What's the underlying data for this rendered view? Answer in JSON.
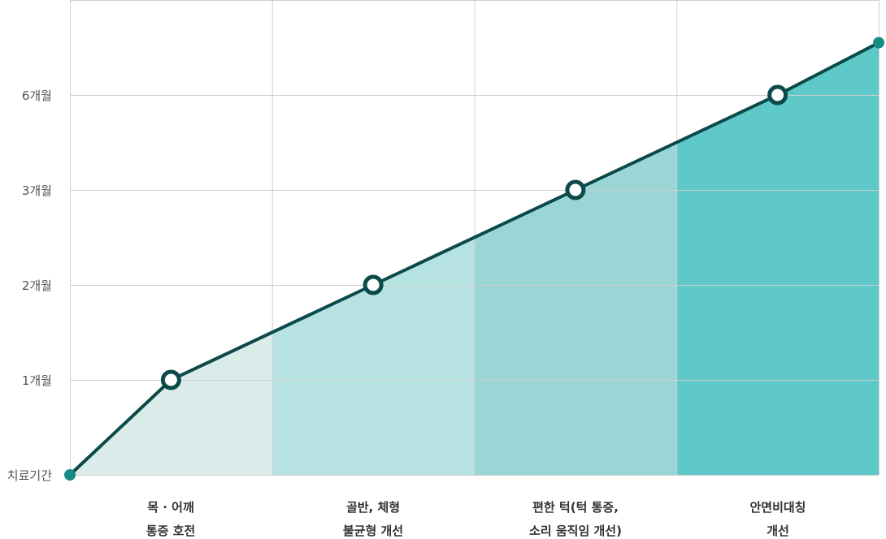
{
  "chart_data": {
    "type": "line",
    "title": "",
    "y_axis_labels": [
      "치료기간",
      "1개월",
      "2개월",
      "3개월",
      "6개월"
    ],
    "categories": [
      [
        "목 · 어깨",
        "통증 호전"
      ],
      [
        "골반, 체형",
        "불균형 개선"
      ],
      [
        "편한 턱(턱 통증,",
        "소리 움직임 개선)"
      ],
      [
        "안면비대칭",
        "개선"
      ]
    ],
    "points": [
      {
        "x": 0,
        "y": 0,
        "marker": "start"
      },
      {
        "x": 0.5,
        "y": 1,
        "marker": "ring"
      },
      {
        "x": 1.5,
        "y": 2,
        "marker": "ring"
      },
      {
        "x": 2.5,
        "y": 3,
        "marker": "ring"
      },
      {
        "x": 3.5,
        "y": 4,
        "marker": "ring"
      },
      {
        "x": 4,
        "y": 4.55,
        "marker": "end"
      }
    ],
    "grid": true,
    "colors": {
      "line": "#0c4a4a",
      "endpoint": "#178a86",
      "grid": "#cfcfcf",
      "bands": [
        "#daecea",
        "#b7e2e2",
        "#9bd6d6",
        "#5fc8c9"
      ]
    }
  }
}
